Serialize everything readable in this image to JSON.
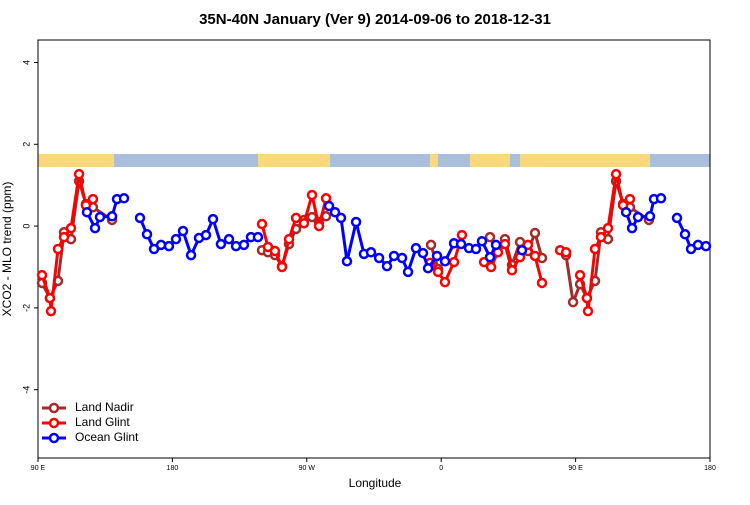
{
  "chart_data": {
    "type": "line",
    "title": "35N-40N January (Ver 9)   2014-09-06 to 2018-12-31",
    "x_label": "Longitude",
    "y_label": "XCO2 - MLO trend (ppm)",
    "xlim": [
      90,
      540
    ],
    "xticks": [
      {
        "value": 90,
        "label": "90 E"
      },
      {
        "value": 180,
        "label": "180"
      },
      {
        "value": 270,
        "label": "90 W"
      },
      {
        "value": 360,
        "label": "0"
      },
      {
        "value": 450,
        "label": "90 E"
      },
      {
        "value": 540,
        "label": "180"
      }
    ],
    "ylim": [
      -5.67,
      4.55
    ],
    "yticks": [
      -4,
      -2,
      0,
      2,
      4
    ],
    "legend": "lower left",
    "series": [
      {
        "name": "Land Nadir",
        "color": "#a52a2a",
        "x": [
          92.7,
          98,
          103.4,
          107.4,
          112.1,
          117.5,
          122.1,
          126.8,
          139.6,
          null,
          240,
          244,
          248.7,
          253.4,
          258.1,
          262.8,
          268.1,
          273.5,
          278.2,
          282.9,
          null,
          353.2,
          357.9,
          null,
          392.7,
          397.4,
          402.7,
          407.4,
          412.8,
          418.1,
          422.8,
          427.5,
          null,
          443.6,
          448.3,
          453,
          457.6,
          463,
          467,
          471.7,
          477.1,
          481.8,
          486.4,
          499.1
        ],
        "values": [
          -1.39,
          -1.76,
          -1.34,
          -0.15,
          -0.32,
          1.1,
          0.54,
          0.46,
          0.15,
          null,
          -0.59,
          -0.64,
          -0.71,
          -0.98,
          -0.44,
          -0.07,
          0.15,
          0.22,
          0.1,
          0.24,
          null,
          -0.46,
          -1.05,
          null,
          -0.27,
          -0.64,
          -0.32,
          -0.95,
          -0.39,
          -0.61,
          -0.17,
          -0.78,
          null,
          -0.71,
          -1.86,
          -1.42,
          -1.76,
          -1.34,
          -0.15,
          -0.32,
          1.1,
          0.54,
          0.46,
          0.15
        ]
      },
      {
        "name": "Land Glint",
        "color": "#ff0000",
        "x": [
          92.7,
          98,
          98.7,
          103.4,
          107.4,
          112.1,
          117.5,
          122.1,
          126.8,
          null,
          240,
          244,
          248.7,
          253.4,
          258.1,
          262.8,
          268.1,
          273.5,
          278.2,
          282.9,
          null,
          352.5,
          357.9,
          362.5,
          368.6,
          373.9,
          null,
          388.7,
          393.4,
          398,
          402.7,
          407.4,
          412.8,
          418.1,
          422.8,
          427.5,
          null,
          439.6,
          443.6,
          null,
          453,
          457.6,
          458.3,
          463,
          467,
          471.7,
          477.1,
          481.8,
          486.4
        ],
        "values": [
          -1.2,
          -1.76,
          -2.08,
          -0.56,
          -0.27,
          -0.05,
          1.27,
          0.51,
          0.66,
          null,
          0.05,
          -0.51,
          -0.61,
          -1,
          -0.32,
          0.2,
          0.07,
          0.76,
          0,
          0.68,
          null,
          -0.9,
          -1.12,
          -1.37,
          -0.88,
          -0.22,
          null,
          -0.88,
          -1,
          -0.64,
          -0.44,
          -1.08,
          -0.76,
          -0.46,
          -0.73,
          -1.39,
          null,
          -0.59,
          -0.64,
          null,
          -1.2,
          -1.76,
          -2.08,
          -0.56,
          -0.27,
          -0.05,
          1.27,
          0.51,
          0.66
        ]
      },
      {
        "name": "Ocean Glint",
        "color": "#0000ff",
        "x": [
          122.8,
          128.2,
          131.5,
          139.6,
          142.9,
          147.6,
          null,
          158.3,
          163,
          167.7,
          172.4,
          177.7,
          182.4,
          187.1,
          192.5,
          197.8,
          202.5,
          207.2,
          212.5,
          217.9,
          222.6,
          227.9,
          232.6,
          237.3,
          null,
          284.9,
          288.9,
          292.9,
          296.9,
          303,
          308.3,
          313,
          318.4,
          323.7,
          328.4,
          333.8,
          337.8,
          343.1,
          347.8,
          351.2,
          357.2,
          362.6,
          368.6,
          373.3,
          378.6,
          383.3,
          387.3,
          392.7,
          396.7,
          null,
          414.1,
          null,
          483.8,
          487.8,
          491.8,
          499.8,
          502.5,
          507.2,
          null,
          517.9,
          523.3,
          527.3,
          532,
          537.3
        ],
        "values": [
          0.34,
          -0.05,
          0.22,
          0.24,
          0.66,
          0.68,
          null,
          0.2,
          -0.2,
          -0.56,
          -0.46,
          -0.49,
          -0.32,
          -0.12,
          -0.71,
          -0.29,
          -0.22,
          0.17,
          -0.44,
          -0.32,
          -0.49,
          -0.46,
          -0.27,
          -0.27,
          null,
          0.49,
          0.34,
          0.2,
          -0.86,
          0.1,
          -0.68,
          -0.64,
          -0.78,
          -0.98,
          -0.73,
          -0.78,
          -1.12,
          -0.54,
          -0.66,
          -1.03,
          -0.73,
          -0.86,
          -0.42,
          -0.44,
          -0.54,
          -0.56,
          -0.37,
          -0.76,
          -0.46,
          null,
          -0.59,
          null,
          0.34,
          -0.05,
          0.22,
          0.24,
          0.66,
          0.68,
          null,
          0.2,
          -0.2,
          -0.56,
          -0.46,
          -0.49
        ]
      }
    ]
  }
}
